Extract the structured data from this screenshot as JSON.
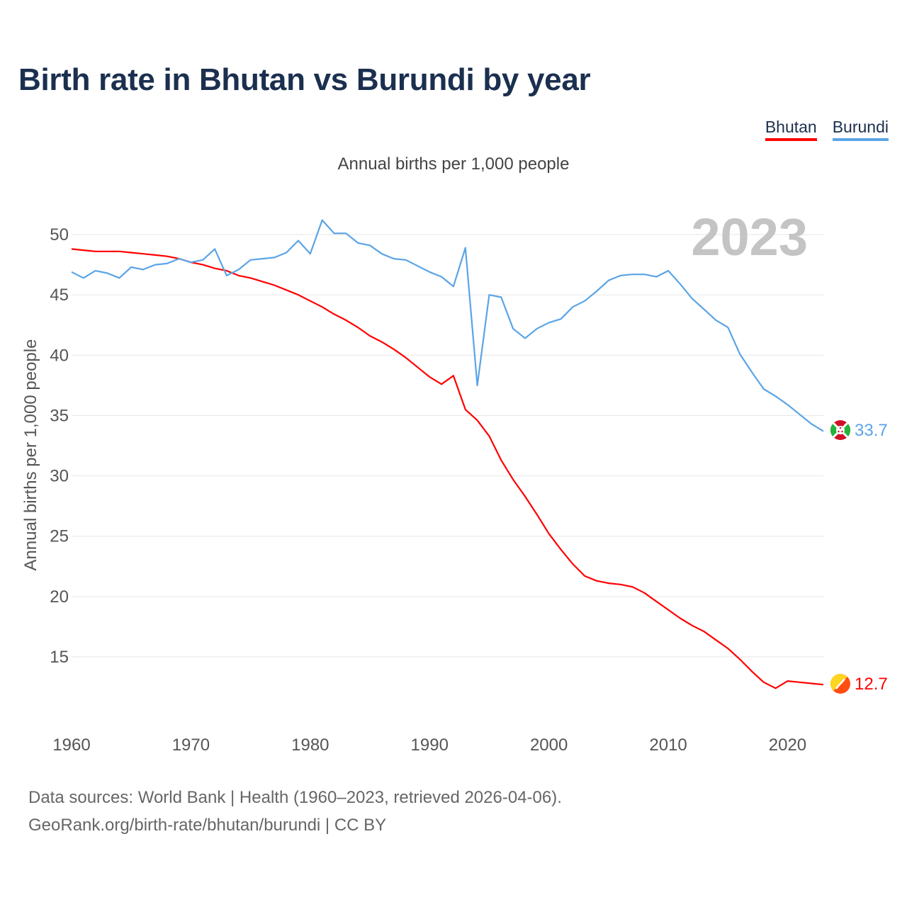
{
  "title": "Birth rate in Bhutan vs Burundi by year",
  "subtitle": "Annual births per 1,000 people",
  "legend": [
    {
      "label": "Bhutan",
      "color": "#ff0000"
    },
    {
      "label": "Burundi",
      "color": "#5aa4e6"
    }
  ],
  "footer": {
    "source_line": "Data sources: World Bank | Health (1960–2023, retrieved 2026-04-06).",
    "url_line": "GeoRank.org/birth-rate/bhutan/burundi | CC BY"
  },
  "chart_data": {
    "type": "line",
    "title": "Birth rate in Bhutan vs Burundi by year",
    "ylabel": "Annual births per 1,000 people",
    "xlabel": "",
    "year_watermark": "2023",
    "xlim": [
      1960,
      2023
    ],
    "ylim": [
      10,
      52
    ],
    "x_ticks": [
      1960,
      1970,
      1980,
      1990,
      2000,
      2010,
      2020
    ],
    "y_ticks": [
      15,
      20,
      25,
      30,
      35,
      40,
      45,
      50
    ],
    "grid": true,
    "x": [
      1960,
      1961,
      1962,
      1963,
      1964,
      1965,
      1966,
      1967,
      1968,
      1969,
      1970,
      1971,
      1972,
      1973,
      1974,
      1975,
      1976,
      1977,
      1978,
      1979,
      1980,
      1981,
      1982,
      1983,
      1984,
      1985,
      1986,
      1987,
      1988,
      1989,
      1990,
      1991,
      1992,
      1993,
      1994,
      1995,
      1996,
      1997,
      1998,
      1999,
      2000,
      2001,
      2002,
      2003,
      2004,
      2005,
      2006,
      2007,
      2008,
      2009,
      2010,
      2011,
      2012,
      2013,
      2014,
      2015,
      2016,
      2017,
      2018,
      2019,
      2020,
      2021,
      2022,
      2023
    ],
    "series": [
      {
        "name": "Bhutan",
        "color": "#ff0000",
        "end_label": "12.7",
        "flag_icon": "bhutan-flag-icon",
        "values": [
          48.8,
          48.7,
          48.6,
          48.6,
          48.6,
          48.5,
          48.4,
          48.3,
          48.2,
          48.0,
          47.7,
          47.5,
          47.2,
          47.0,
          46.6,
          46.4,
          46.1,
          45.8,
          45.4,
          45.0,
          44.5,
          44.0,
          43.4,
          42.9,
          42.3,
          41.6,
          41.1,
          40.5,
          39.8,
          39.0,
          38.2,
          37.6,
          38.3,
          35.5,
          34.6,
          33.3,
          31.3,
          29.7,
          28.3,
          26.8,
          25.2,
          23.9,
          22.7,
          21.7,
          21.3,
          21.1,
          21.0,
          20.8,
          20.3,
          19.6,
          18.9,
          18.2,
          17.6,
          17.1,
          16.4,
          15.7,
          14.8,
          13.8,
          12.9,
          12.4,
          13.0,
          12.9,
          12.8,
          12.7
        ]
      },
      {
        "name": "Burundi",
        "color": "#5aa4e6",
        "end_label": "33.7",
        "flag_icon": "burundi-flag-icon",
        "values": [
          46.9,
          46.4,
          47.0,
          46.8,
          46.4,
          47.3,
          47.1,
          47.5,
          47.6,
          48.0,
          47.7,
          47.9,
          48.8,
          46.6,
          47.1,
          47.9,
          48.0,
          48.1,
          48.5,
          49.5,
          48.4,
          51.2,
          50.1,
          50.1,
          49.3,
          49.1,
          48.4,
          48.0,
          47.9,
          47.4,
          46.9,
          46.5,
          45.7,
          48.9,
          37.5,
          45.0,
          44.8,
          42.2,
          41.4,
          42.2,
          42.7,
          43.0,
          44.0,
          44.5,
          45.3,
          46.2,
          46.6,
          46.7,
          46.7,
          46.5,
          47.0,
          45.9,
          44.7,
          43.8,
          42.9,
          42.3,
          40.1,
          38.6,
          37.2,
          36.6,
          35.9,
          35.1,
          34.3,
          33.7
        ]
      }
    ]
  }
}
